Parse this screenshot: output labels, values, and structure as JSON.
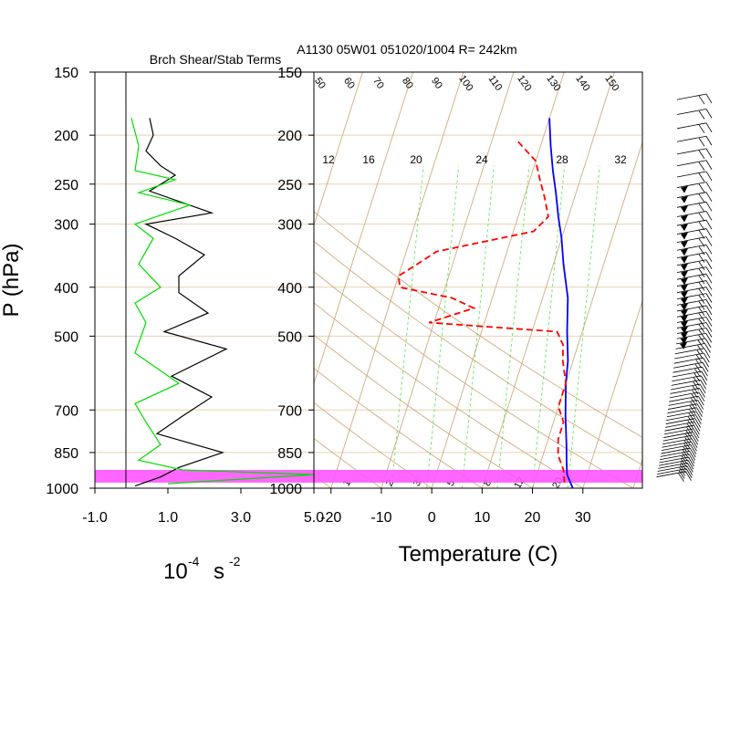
{
  "title": "A1130 05W01 051020/1004 R= 242km",
  "colors": {
    "temperature": "#0000ff",
    "dewpoint": "#ff0000",
    "shear": "#000000",
    "stability": "#00dd00",
    "highlight": "#ff55ff",
    "skewt_lines": "#c8a070",
    "mixing_ratio": "#33dd33",
    "isobar": "#e8d2b4"
  },
  "chart_data": [
    {
      "type": "line",
      "title": "Brch Shear/Stab Terms",
      "xlabel": "10",
      "xlabel_exp": "-4",
      "xlabel_unit": "s",
      "xlabel_unit_exp": "-2",
      "ylabel": "P (hPa)",
      "xlim": [
        -1.0,
        5.0
      ],
      "ylim": [
        1000,
        150
      ],
      "y_scale": "log",
      "x_ticks": [
        "-1.0",
        "1.0",
        "3.0",
        "5.0"
      ],
      "y_ticks": [
        "150",
        "200",
        "250",
        "300",
        "400",
        "500",
        "700",
        "850",
        "1000"
      ],
      "highlight_band": [
        920,
        975
      ],
      "series": [
        {
          "key": "shear",
          "points": [
            [
              0.5,
              185
            ],
            [
              0.6,
              200
            ],
            [
              0.4,
              215
            ],
            [
              0.8,
              230
            ],
            [
              1.2,
              240
            ],
            [
              0.5,
              258
            ],
            [
              2.2,
              285
            ],
            [
              0.4,
              300
            ],
            [
              1.2,
              320
            ],
            [
              2.0,
              345
            ],
            [
              1.3,
              380
            ],
            [
              1.3,
              410
            ],
            [
              2.1,
              450
            ],
            [
              0.9,
              490
            ],
            [
              2.6,
              530
            ],
            [
              1.1,
              600
            ],
            [
              2.2,
              660
            ],
            [
              1.4,
              720
            ],
            [
              0.7,
              780
            ],
            [
              2.5,
              850
            ],
            [
              1.3,
              910
            ],
            [
              0.8,
              950
            ],
            [
              0.1,
              990
            ]
          ]
        },
        {
          "key": "stability",
          "points": [
            [
              0.0,
              185
            ],
            [
              0.2,
              210
            ],
            [
              0.1,
              235
            ],
            [
              1.2,
              245
            ],
            [
              0.2,
              260
            ],
            [
              1.6,
              275
            ],
            [
              0.1,
              300
            ],
            [
              0.6,
              320
            ],
            [
              0.2,
              360
            ],
            [
              0.8,
              400
            ],
            [
              0.1,
              430
            ],
            [
              0.4,
              470
            ],
            [
              0.1,
              540
            ],
            [
              1.3,
              620
            ],
            [
              0.1,
              680
            ],
            [
              0.4,
              740
            ],
            [
              0.8,
              820
            ],
            [
              0.2,
              880
            ],
            [
              1.4,
              920
            ],
            [
              5.0,
              940
            ],
            [
              1.0,
              980
            ]
          ]
        }
      ]
    },
    {
      "type": "line",
      "subtype": "skew-t",
      "xlabel": "Temperature (C)",
      "xlim": [
        -25,
        40
      ],
      "ylim": [
        1000,
        150
      ],
      "y_scale": "log",
      "x_ticks": [
        "-20",
        "-10",
        "0",
        "10",
        "20",
        "30"
      ],
      "y_ticks": [
        "150",
        "200",
        "250",
        "300",
        "400",
        "500",
        "700",
        "850",
        "1000"
      ],
      "mixing_ratio_labels": [
        "12",
        "16",
        "20",
        "24",
        "28",
        "32"
      ],
      "dry_adiabat_labels": [
        "50",
        "60",
        "70",
        "80",
        "90",
        "100",
        "110",
        "120",
        "130",
        "140",
        "150"
      ],
      "moist_adiabat_labels": [
        "1",
        "2",
        "3",
        "5",
        "8",
        "12",
        "20"
      ],
      "wind_barbs": "right",
      "series": [
        {
          "key": "temperature",
          "points": [
            [
              28,
              1000
            ],
            [
              26,
              940
            ],
            [
              25,
              880
            ],
            [
              24,
              820
            ],
            [
              22,
              720
            ],
            [
              20,
              620
            ],
            [
              19,
              560
            ],
            [
              17,
              490
            ],
            [
              15,
              420
            ],
            [
              12,
              360
            ],
            [
              10,
              320
            ],
            [
              8,
              290
            ],
            [
              6,
              260
            ],
            [
              4,
              235
            ],
            [
              2,
              210
            ],
            [
              0,
              185
            ]
          ]
        },
        {
          "key": "dewpoint",
          "points": [
            [
              26,
              975
            ],
            [
              25,
              920
            ],
            [
              23,
              860
            ],
            [
              22,
              800
            ],
            [
              22,
              740
            ],
            [
              20,
              690
            ],
            [
              20,
              620
            ],
            [
              18,
              560
            ],
            [
              17,
              520
            ],
            [
              15,
              490
            ],
            [
              -11,
              470
            ],
            [
              -3,
              440
            ],
            [
              -8,
              420
            ],
            [
              -19,
              400
            ],
            [
              -20,
              380
            ],
            [
              -17,
              360
            ],
            [
              -14,
              340
            ],
            [
              4,
              310
            ],
            [
              6,
              290
            ],
            [
              4,
              265
            ],
            [
              2,
              245
            ],
            [
              0,
              225
            ],
            [
              -5,
              205
            ]
          ]
        }
      ]
    }
  ]
}
